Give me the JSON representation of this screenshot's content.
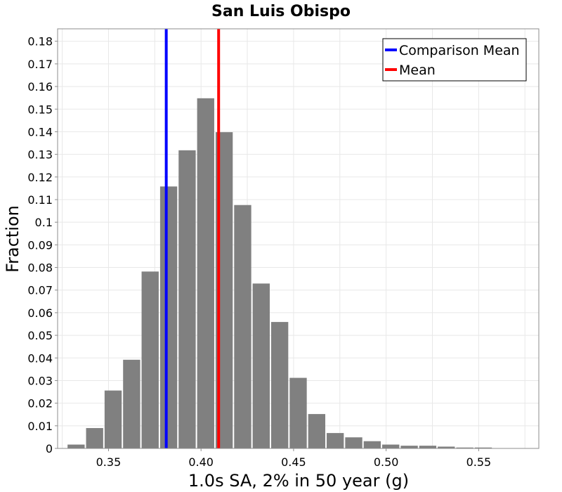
{
  "chart_data": {
    "type": "bar",
    "title": "San Luis Obispo",
    "xlabel": "1.0s SA, 2% in 50 year (g)",
    "ylabel": "Fraction",
    "xlim": [
      0.3225,
      0.5825
    ],
    "ylim": [
      0,
      0.1855
    ],
    "bin_width": 0.01,
    "x_ticks": [
      0.35,
      0.4,
      0.45,
      0.5,
      0.55
    ],
    "x_tick_labels": [
      "0.35",
      "0.40",
      "0.45",
      "0.50",
      "0.55"
    ],
    "y_ticks": [
      0,
      0.01,
      0.02,
      0.03,
      0.04,
      0.05,
      0.06,
      0.07,
      0.08,
      0.09,
      0.1,
      0.11,
      0.12,
      0.13,
      0.14,
      0.15,
      0.16,
      0.17,
      0.18
    ],
    "y_tick_labels": [
      "0",
      "0.01",
      "0.02",
      "0.03",
      "0.04",
      "0.05",
      "0.06",
      "0.07",
      "0.08",
      "0.09",
      "0.1",
      "0.11",
      "0.12",
      "0.13",
      "0.14",
      "0.15",
      "0.16",
      "0.17",
      "0.18"
    ],
    "grid": true,
    "bar_color": "#808080",
    "x": [
      0.3325,
      0.3425,
      0.3525,
      0.3625,
      0.3725,
      0.3825,
      0.3925,
      0.4025,
      0.4125,
      0.4225,
      0.4325,
      0.4425,
      0.4525,
      0.4625,
      0.4725,
      0.4825,
      0.4925,
      0.5025,
      0.5125,
      0.5225,
      0.5325,
      0.5425,
      0.5525
    ],
    "values": [
      0.0017,
      0.009,
      0.0256,
      0.0392,
      0.0782,
      0.1158,
      0.1318,
      0.1548,
      0.1398,
      0.1076,
      0.0729,
      0.0559,
      0.0312,
      0.0152,
      0.0068,
      0.0049,
      0.0032,
      0.0017,
      0.0012,
      0.0012,
      0.0008,
      0.0004,
      0.0004
    ],
    "vlines": [
      {
        "name": "Comparison Mean",
        "x": 0.3812,
        "color": "#0000ff"
      },
      {
        "name": "Mean",
        "x": 0.4095,
        "color": "#ff0000"
      }
    ],
    "legend_position": "top-right"
  }
}
